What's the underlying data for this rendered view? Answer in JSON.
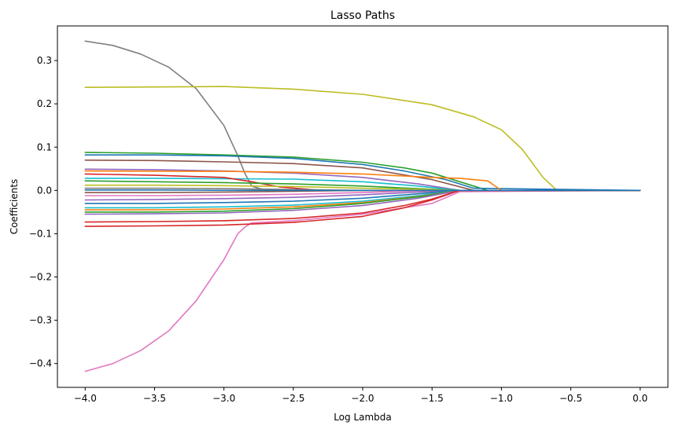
{
  "chart_data": {
    "type": "line",
    "title": "Lasso Paths",
    "xlabel": "Log Lambda",
    "ylabel": "Coefficients",
    "xlim": [
      -4.2,
      0.2
    ],
    "ylim": [
      -0.455,
      0.38
    ],
    "xticks": [
      -4.0,
      -3.5,
      -3.0,
      -2.5,
      -2.0,
      -1.5,
      -1.0,
      -0.5,
      0.0
    ],
    "xtick_labels": [
      "−4.0",
      "−3.5",
      "−3.0",
      "−2.5",
      "−2.0",
      "−1.5",
      "−1.0",
      "−0.5",
      "0.0"
    ],
    "yticks": [
      -0.4,
      -0.3,
      -0.2,
      -0.1,
      0.0,
      0.1,
      0.2,
      0.3
    ],
    "ytick_labels": [
      "−0.4",
      "−0.3",
      "−0.2",
      "−0.1",
      "0.0",
      "0.1",
      "0.2",
      "0.3"
    ],
    "grid": false,
    "legend": "none",
    "series": [
      {
        "color": "#7f7f7f",
        "x": [
          -4.0,
          -3.8,
          -3.6,
          -3.4,
          -3.2,
          -3.0,
          -2.9,
          -2.85,
          -2.8,
          -2.7,
          -2.5,
          -2.0,
          0.0
        ],
        "values": [
          0.345,
          0.335,
          0.315,
          0.285,
          0.235,
          0.15,
          0.08,
          0.04,
          0.01,
          0.0,
          0.0,
          0.0,
          0.0
        ]
      },
      {
        "color": "#e377c2",
        "x": [
          -4.0,
          -3.8,
          -3.6,
          -3.4,
          -3.2,
          -3.0,
          -2.9,
          -2.85,
          -2.8,
          -2.5,
          -2.0,
          -1.5,
          -1.3,
          0.0
        ],
        "values": [
          -0.418,
          -0.4,
          -0.37,
          -0.325,
          -0.255,
          -0.16,
          -0.1,
          -0.085,
          -0.075,
          -0.07,
          -0.055,
          -0.03,
          -0.003,
          0.0
        ]
      },
      {
        "color": "#bcbd22",
        "x": [
          -4.0,
          -3.5,
          -3.0,
          -2.5,
          -2.0,
          -1.5,
          -1.2,
          -1.0,
          -0.85,
          -0.7,
          -0.6,
          0.0
        ],
        "values": [
          0.238,
          0.239,
          0.24,
          0.234,
          0.222,
          0.198,
          0.17,
          0.14,
          0.095,
          0.03,
          0.0,
          0.0
        ]
      },
      {
        "color": "#2ca02c",
        "x": [
          -4.0,
          -3.5,
          -3.0,
          -2.5,
          -2.0,
          -1.7,
          -1.5,
          -1.3,
          -1.1,
          0.0
        ],
        "values": [
          0.088,
          0.086,
          0.082,
          0.077,
          0.065,
          0.052,
          0.04,
          0.02,
          0.0,
          0.0
        ]
      },
      {
        "color": "#1f77b4",
        "x": [
          -4.0,
          -3.5,
          -3.0,
          -2.5,
          -2.0,
          -1.7,
          -1.4,
          -1.2,
          0.0
        ],
        "values": [
          0.082,
          0.082,
          0.08,
          0.074,
          0.06,
          0.045,
          0.025,
          0.005,
          0.0
        ]
      },
      {
        "color": "#8c564b",
        "x": [
          -4.0,
          -3.5,
          -3.0,
          -2.5,
          -2.0,
          -1.5,
          -1.2,
          0.0
        ],
        "values": [
          0.07,
          0.069,
          0.066,
          0.062,
          0.052,
          0.025,
          0.0,
          0.0
        ]
      },
      {
        "color": "#9467bd",
        "x": [
          -4.0,
          -3.5,
          -3.0,
          -2.5,
          -2.0,
          -1.6,
          -1.3,
          0.0
        ],
        "values": [
          0.049,
          0.048,
          0.045,
          0.04,
          0.03,
          0.015,
          0.0,
          0.0
        ]
      },
      {
        "color": "#ff7f0e",
        "x": [
          -4.0,
          -3.0,
          -2.5,
          -2.0,
          -1.5,
          -1.3,
          -1.1,
          -1.0,
          0.0
        ],
        "values": [
          0.045,
          0.044,
          0.042,
          0.038,
          0.03,
          0.028,
          0.022,
          0.0,
          0.0
        ]
      },
      {
        "color": "#17becf",
        "x": [
          -4.0,
          -3.5,
          -3.0,
          -2.5,
          -2.0,
          -1.6,
          -1.3,
          0.0
        ],
        "values": [
          0.028,
          0.028,
          0.027,
          0.026,
          0.02,
          0.01,
          0.0,
          0.0
        ]
      },
      {
        "color": "#d62728",
        "x": [
          -4.0,
          -3.5,
          -3.0,
          -2.8,
          -2.6,
          -2.3,
          -2.0,
          0.0
        ],
        "values": [
          0.038,
          0.035,
          0.03,
          0.02,
          0.008,
          0.0,
          0.0,
          0.0
        ]
      },
      {
        "color": "#2ca02c",
        "x": [
          -4.0,
          -3.5,
          -3.0,
          -2.5,
          -2.0,
          -1.6,
          -1.3,
          0.0
        ],
        "values": [
          0.022,
          0.02,
          0.018,
          0.015,
          0.01,
          0.004,
          0.0,
          0.0
        ]
      },
      {
        "color": "#bcbd22",
        "x": [
          -4.0,
          -3.5,
          -3.0,
          -2.5,
          -2.0,
          -1.5,
          -1.3,
          0.0
        ],
        "values": [
          0.012,
          0.012,
          0.011,
          0.009,
          0.005,
          0.002,
          0.0,
          0.0
        ]
      },
      {
        "color": "#7f7f7f",
        "x": [
          -4.0,
          -3.5,
          -3.0,
          -2.5,
          -2.0,
          0.0
        ],
        "values": [
          0.005,
          0.005,
          0.004,
          0.002,
          0.0,
          0.0
        ]
      },
      {
        "color": "#8c564b",
        "x": [
          -4.0,
          -3.5,
          -3.0,
          -2.5,
          -2.0,
          0.0
        ],
        "values": [
          -0.005,
          -0.005,
          -0.004,
          -0.002,
          0.0,
          0.0
        ]
      },
      {
        "color": "#e377c2",
        "x": [
          -4.0,
          -3.5,
          -3.0,
          -2.5,
          -2.0,
          -1.5,
          0.0
        ],
        "values": [
          -0.012,
          -0.012,
          -0.011,
          -0.009,
          -0.005,
          0.0,
          0.0
        ]
      },
      {
        "color": "#9467bd",
        "x": [
          -4.0,
          -3.5,
          -3.0,
          -2.5,
          -2.0,
          -1.6,
          -1.3,
          0.0
        ],
        "values": [
          -0.022,
          -0.021,
          -0.019,
          -0.016,
          -0.01,
          -0.004,
          0.0,
          0.0
        ]
      },
      {
        "color": "#1f77b4",
        "x": [
          -4.0,
          -3.5,
          -3.0,
          -2.5,
          -2.0,
          -1.6,
          -1.3,
          0.0
        ],
        "values": [
          -0.03,
          -0.03,
          -0.028,
          -0.025,
          -0.018,
          -0.008,
          0.0,
          0.0
        ]
      },
      {
        "color": "#17becf",
        "x": [
          -4.0,
          -3.5,
          -3.0,
          -2.5,
          -2.0,
          -1.6,
          -1.3,
          0.0
        ],
        "values": [
          -0.04,
          -0.04,
          -0.038,
          -0.034,
          -0.025,
          -0.012,
          0.0,
          0.0
        ]
      },
      {
        "color": "#ff7f0e",
        "x": [
          -4.0,
          -3.5,
          -3.0,
          -2.5,
          -2.0,
          -1.6,
          -1.3,
          0.0
        ],
        "values": [
          -0.045,
          -0.045,
          -0.043,
          -0.038,
          -0.028,
          -0.014,
          0.0,
          0.0
        ]
      },
      {
        "color": "#2ca02c",
        "x": [
          -4.0,
          -3.5,
          -3.0,
          -2.5,
          -2.0,
          -1.6,
          -1.3,
          0.0
        ],
        "values": [
          -0.05,
          -0.05,
          -0.048,
          -0.042,
          -0.03,
          -0.015,
          0.0,
          0.0
        ]
      },
      {
        "color": "#9467bd",
        "x": [
          -4.0,
          -3.5,
          -3.0,
          -2.5,
          -2.0,
          -1.6,
          -1.3,
          0.0
        ],
        "values": [
          -0.055,
          -0.054,
          -0.052,
          -0.046,
          -0.035,
          -0.018,
          0.0,
          0.0
        ]
      },
      {
        "color": "#d62728",
        "x": [
          -4.0,
          -3.5,
          -3.0,
          -2.5,
          -2.0,
          -1.7,
          -1.5,
          -1.3,
          0.0
        ],
        "values": [
          -0.073,
          -0.072,
          -0.07,
          -0.065,
          -0.052,
          -0.035,
          -0.02,
          0.0,
          0.0
        ]
      },
      {
        "color": "#d62728",
        "x": [
          -4.0,
          -3.5,
          -3.0,
          -2.5,
          -2.0,
          -1.7,
          -1.5,
          -1.3,
          0.0
        ],
        "values": [
          -0.083,
          -0.082,
          -0.08,
          -0.074,
          -0.06,
          -0.04,
          -0.022,
          0.0,
          0.0
        ]
      },
      {
        "color": "#1f77b4",
        "x": [
          -4.0,
          -3.5,
          -3.0,
          -2.5,
          -2.0,
          -1.7,
          -1.4,
          -1.2,
          0.0
        ],
        "values": [
          0.001,
          0.001,
          0.0,
          0.0,
          0.0,
          0.0,
          0.0,
          0.0,
          0.0
        ]
      }
    ]
  }
}
